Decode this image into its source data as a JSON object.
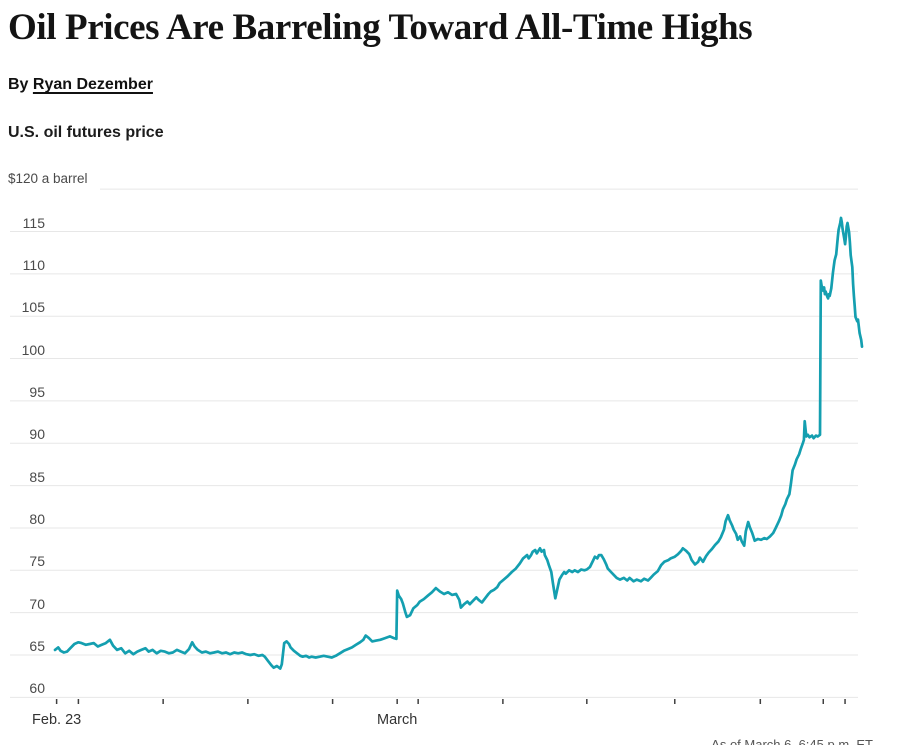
{
  "article": {
    "title": "Oil Prices Are Barreling Toward All-Time Highs",
    "byline_prefix": "By",
    "author": "Ryan Dezember"
  },
  "chart": {
    "heading": "U.S. oil futures price",
    "unit_label": "$120 a barrel",
    "as_of_note": "As of March 6, 6:45 p.m. ET",
    "line_color": "#149FB0",
    "grid_color": "#e7e7e7",
    "tick_color": "#3f3f3f"
  },
  "chart_data": {
    "type": "line",
    "title": "U.S. oil futures price",
    "ylabel": "$120 a barrel",
    "xlabel": "",
    "ylim": [
      60,
      120
    ],
    "yticks": [
      60,
      65,
      70,
      75,
      80,
      85,
      90,
      95,
      100,
      105,
      110,
      115,
      120
    ],
    "grid": true,
    "legend": "none",
    "x_axis": {
      "start_label": "Feb. 23",
      "month_label": "March",
      "tick_positions_t": [
        0.002,
        0.029,
        0.134,
        0.239,
        0.344,
        0.424,
        0.45,
        0.555,
        0.659,
        0.768,
        0.874,
        0.952,
        0.979
      ],
      "labels": [
        {
          "label": "Feb. 23",
          "t": 0.002
        },
        {
          "label": "March",
          "t": 0.424
        }
      ]
    },
    "series": [
      {
        "name": "U.S. oil futures price ($ a barrel)",
        "points": [
          [
            0,
            65.6
          ],
          [
            0.004,
            65.9
          ],
          [
            0.007,
            65.5
          ],
          [
            0.011,
            65.3
          ],
          [
            0.015,
            65.4
          ],
          [
            0.019,
            65.8
          ],
          [
            0.024,
            66.3
          ],
          [
            0.029,
            66.5
          ],
          [
            0.033,
            66.4
          ],
          [
            0.038,
            66.2
          ],
          [
            0.043,
            66.3
          ],
          [
            0.048,
            66.4
          ],
          [
            0.053,
            66.0
          ],
          [
            0.058,
            66.2
          ],
          [
            0.063,
            66.4
          ],
          [
            0.068,
            66.8
          ],
          [
            0.072,
            66.1
          ],
          [
            0.077,
            65.6
          ],
          [
            0.082,
            65.8
          ],
          [
            0.087,
            65.2
          ],
          [
            0.092,
            65.5
          ],
          [
            0.097,
            65.1
          ],
          [
            0.102,
            65.4
          ],
          [
            0.107,
            65.6
          ],
          [
            0.112,
            65.8
          ],
          [
            0.116,
            65.4
          ],
          [
            0.121,
            65.6
          ],
          [
            0.126,
            65.2
          ],
          [
            0.131,
            65.5
          ],
          [
            0.136,
            65.4
          ],
          [
            0.141,
            65.2
          ],
          [
            0.146,
            65.3
          ],
          [
            0.151,
            65.6
          ],
          [
            0.156,
            65.4
          ],
          [
            0.161,
            65.2
          ],
          [
            0.166,
            65.7
          ],
          [
            0.17,
            66.5
          ],
          [
            0.173,
            66.0
          ],
          [
            0.177,
            65.6
          ],
          [
            0.182,
            65.3
          ],
          [
            0.187,
            65.4
          ],
          [
            0.192,
            65.2
          ],
          [
            0.197,
            65.3
          ],
          [
            0.202,
            65.4
          ],
          [
            0.207,
            65.2
          ],
          [
            0.212,
            65.3
          ],
          [
            0.217,
            65.1
          ],
          [
            0.222,
            65.3
          ],
          [
            0.227,
            65.2
          ],
          [
            0.232,
            65.3
          ],
          [
            0.237,
            65.1
          ],
          [
            0.242,
            65.0
          ],
          [
            0.247,
            65.1
          ],
          [
            0.252,
            64.9
          ],
          [
            0.257,
            65.0
          ],
          [
            0.26,
            64.8
          ],
          [
            0.264,
            64.3
          ],
          [
            0.268,
            63.8
          ],
          [
            0.271,
            63.5
          ],
          [
            0.275,
            63.7
          ],
          [
            0.279,
            63.4
          ],
          [
            0.281,
            63.9
          ],
          [
            0.284,
            66.4
          ],
          [
            0.287,
            66.6
          ],
          [
            0.29,
            66.3
          ],
          [
            0.292,
            65.9
          ],
          [
            0.296,
            65.5
          ],
          [
            0.3,
            65.2
          ],
          [
            0.304,
            64.9
          ],
          [
            0.307,
            64.8
          ],
          [
            0.311,
            64.9
          ],
          [
            0.315,
            64.7
          ],
          [
            0.318,
            64.8
          ],
          [
            0.323,
            64.7
          ],
          [
            0.328,
            64.8
          ],
          [
            0.333,
            64.9
          ],
          [
            0.338,
            64.8
          ],
          [
            0.343,
            64.7
          ],
          [
            0.348,
            64.9
          ],
          [
            0.353,
            65.2
          ],
          [
            0.358,
            65.5
          ],
          [
            0.363,
            65.7
          ],
          [
            0.368,
            65.9
          ],
          [
            0.373,
            66.2
          ],
          [
            0.378,
            66.5
          ],
          [
            0.382,
            66.8
          ],
          [
            0.385,
            67.3
          ],
          [
            0.389,
            67.0
          ],
          [
            0.393,
            66.6
          ],
          [
            0.398,
            66.7
          ],
          [
            0.403,
            66.8
          ],
          [
            0.409,
            67.0
          ],
          [
            0.415,
            67.2
          ],
          [
            0.42,
            67.0
          ],
          [
            0.423,
            66.9
          ],
          [
            0.424,
            72.6
          ],
          [
            0.426,
            72.0
          ],
          [
            0.429,
            71.6
          ],
          [
            0.431,
            71.1
          ],
          [
            0.434,
            70.1
          ],
          [
            0.436,
            69.5
          ],
          [
            0.44,
            69.7
          ],
          [
            0.444,
            70.5
          ],
          [
            0.449,
            70.9
          ],
          [
            0.452,
            71.3
          ],
          [
            0.457,
            71.6
          ],
          [
            0.462,
            72.0
          ],
          [
            0.467,
            72.4
          ],
          [
            0.472,
            72.9
          ],
          [
            0.477,
            72.5
          ],
          [
            0.482,
            72.2
          ],
          [
            0.487,
            72.4
          ],
          [
            0.492,
            72.1
          ],
          [
            0.497,
            72.2
          ],
          [
            0.501,
            71.5
          ],
          [
            0.503,
            70.6
          ],
          [
            0.507,
            71.0
          ],
          [
            0.511,
            71.3
          ],
          [
            0.514,
            71.0
          ],
          [
            0.518,
            71.4
          ],
          [
            0.522,
            71.8
          ],
          [
            0.525,
            71.5
          ],
          [
            0.529,
            71.2
          ],
          [
            0.533,
            71.7
          ],
          [
            0.537,
            72.2
          ],
          [
            0.54,
            72.5
          ],
          [
            0.544,
            72.7
          ],
          [
            0.548,
            73.0
          ],
          [
            0.551,
            73.5
          ],
          [
            0.556,
            73.9
          ],
          [
            0.561,
            74.3
          ],
          [
            0.566,
            74.8
          ],
          [
            0.571,
            75.2
          ],
          [
            0.576,
            75.8
          ],
          [
            0.58,
            76.4
          ],
          [
            0.585,
            76.8
          ],
          [
            0.587,
            76.4
          ],
          [
            0.59,
            76.8
          ],
          [
            0.592,
            77.2
          ],
          [
            0.595,
            77.4
          ],
          [
            0.597,
            77.0
          ],
          [
            0.601,
            77.6
          ],
          [
            0.603,
            77.2
          ],
          [
            0.606,
            77.4
          ],
          [
            0.607,
            76.8
          ],
          [
            0.61,
            76.2
          ],
          [
            0.612,
            75.6
          ],
          [
            0.615,
            74.8
          ],
          [
            0.617,
            73.5
          ],
          [
            0.62,
            71.7
          ],
          [
            0.622,
            72.6
          ],
          [
            0.625,
            73.9
          ],
          [
            0.628,
            74.4
          ],
          [
            0.631,
            74.8
          ],
          [
            0.633,
            74.6
          ],
          [
            0.637,
            75.0
          ],
          [
            0.641,
            74.8
          ],
          [
            0.644,
            75.0
          ],
          [
            0.648,
            74.8
          ],
          [
            0.652,
            75.1
          ],
          [
            0.656,
            75.0
          ],
          [
            0.659,
            75.1
          ],
          [
            0.663,
            75.4
          ],
          [
            0.667,
            76.2
          ],
          [
            0.669,
            76.6
          ],
          [
            0.672,
            76.4
          ],
          [
            0.674,
            76.8
          ],
          [
            0.677,
            76.8
          ],
          [
            0.68,
            76.3
          ],
          [
            0.683,
            75.7
          ],
          [
            0.685,
            75.2
          ],
          [
            0.689,
            74.8
          ],
          [
            0.693,
            74.4
          ],
          [
            0.696,
            74.1
          ],
          [
            0.7,
            73.9
          ],
          [
            0.705,
            74.1
          ],
          [
            0.709,
            73.8
          ],
          [
            0.712,
            74.1
          ],
          [
            0.717,
            73.7
          ],
          [
            0.721,
            73.9
          ],
          [
            0.726,
            73.7
          ],
          [
            0.73,
            74.0
          ],
          [
            0.735,
            73.8
          ],
          [
            0.738,
            74.1
          ],
          [
            0.742,
            74.5
          ],
          [
            0.747,
            74.9
          ],
          [
            0.751,
            75.6
          ],
          [
            0.755,
            76.0
          ],
          [
            0.76,
            76.2
          ],
          [
            0.763,
            76.4
          ],
          [
            0.768,
            76.6
          ],
          [
            0.772,
            76.9
          ],
          [
            0.776,
            77.3
          ],
          [
            0.778,
            77.6
          ],
          [
            0.782,
            77.3
          ],
          [
            0.786,
            76.9
          ],
          [
            0.789,
            76.2
          ],
          [
            0.793,
            75.7
          ],
          [
            0.797,
            76.0
          ],
          [
            0.799,
            76.5
          ],
          [
            0.803,
            76.0
          ],
          [
            0.807,
            76.7
          ],
          [
            0.81,
            77.1
          ],
          [
            0.814,
            77.5
          ],
          [
            0.818,
            78.0
          ],
          [
            0.822,
            78.4
          ],
          [
            0.825,
            78.9
          ],
          [
            0.829,
            79.8
          ],
          [
            0.831,
            80.8
          ],
          [
            0.834,
            81.5
          ],
          [
            0.836,
            80.9
          ],
          [
            0.839,
            80.3
          ],
          [
            0.841,
            79.8
          ],
          [
            0.844,
            79.3
          ],
          [
            0.846,
            78.6
          ],
          [
            0.849,
            79.0
          ],
          [
            0.851,
            78.4
          ],
          [
            0.854,
            77.9
          ],
          [
            0.856,
            79.6
          ],
          [
            0.859,
            80.7
          ],
          [
            0.861,
            80.1
          ],
          [
            0.864,
            79.4
          ],
          [
            0.867,
            78.5
          ],
          [
            0.871,
            78.7
          ],
          [
            0.875,
            78.6
          ],
          [
            0.879,
            78.8
          ],
          [
            0.882,
            78.7
          ],
          [
            0.886,
            79.0
          ],
          [
            0.89,
            79.4
          ],
          [
            0.893,
            80.0
          ],
          [
            0.897,
            80.8
          ],
          [
            0.9,
            81.5
          ],
          [
            0.902,
            82.2
          ],
          [
            0.905,
            82.8
          ],
          [
            0.907,
            83.4
          ],
          [
            0.91,
            84.0
          ],
          [
            0.912,
            85.3
          ],
          [
            0.914,
            86.8
          ],
          [
            0.917,
            87.5
          ],
          [
            0.919,
            88.1
          ],
          [
            0.922,
            88.7
          ],
          [
            0.924,
            89.3
          ],
          [
            0.927,
            90.1
          ],
          [
            0.928,
            90.4
          ],
          [
            0.929,
            92.6
          ],
          [
            0.931,
            90.8
          ],
          [
            0.933,
            91.0
          ],
          [
            0.935,
            90.7
          ],
          [
            0.938,
            90.9
          ],
          [
            0.94,
            90.6
          ],
          [
            0.943,
            90.9
          ],
          [
            0.945,
            90.8
          ],
          [
            0.948,
            91.0
          ],
          [
            0.949,
            109.2
          ],
          [
            0.95,
            108.6
          ],
          [
            0.952,
            108.0
          ],
          [
            0.953,
            108.4
          ],
          [
            0.954,
            107.6
          ],
          [
            0.955,
            107.9
          ],
          [
            0.957,
            107.3
          ],
          [
            0.958,
            107.1
          ],
          [
            0.959,
            107.6
          ],
          [
            0.96,
            107.4
          ],
          [
            0.962,
            108.3
          ],
          [
            0.963,
            109.2
          ],
          [
            0.964,
            110.1
          ],
          [
            0.965,
            110.9
          ],
          [
            0.966,
            111.6
          ],
          [
            0.968,
            112.3
          ],
          [
            0.969,
            113.3
          ],
          [
            0.97,
            114.3
          ],
          [
            0.971,
            115.2
          ],
          [
            0.973,
            116.0
          ],
          [
            0.974,
            116.6
          ],
          [
            0.975,
            116.1
          ],
          [
            0.976,
            115.3
          ],
          [
            0.978,
            114.2
          ],
          [
            0.979,
            113.5
          ],
          [
            0.98,
            114.4
          ],
          [
            0.981,
            115.6
          ],
          [
            0.982,
            116.0
          ],
          [
            0.984,
            114.9
          ],
          [
            0.985,
            113.7
          ],
          [
            0.986,
            112.2
          ],
          [
            0.988,
            110.8
          ],
          [
            0.989,
            108.8
          ],
          [
            0.99,
            107.4
          ],
          [
            0.991,
            106.2
          ],
          [
            0.992,
            104.9
          ],
          [
            0.994,
            104.4
          ],
          [
            0.995,
            104.6
          ],
          [
            0.996,
            103.8
          ],
          [
            0.997,
            103.0
          ],
          [
            0.999,
            102.2
          ],
          [
            1,
            101.4
          ]
        ]
      }
    ]
  }
}
